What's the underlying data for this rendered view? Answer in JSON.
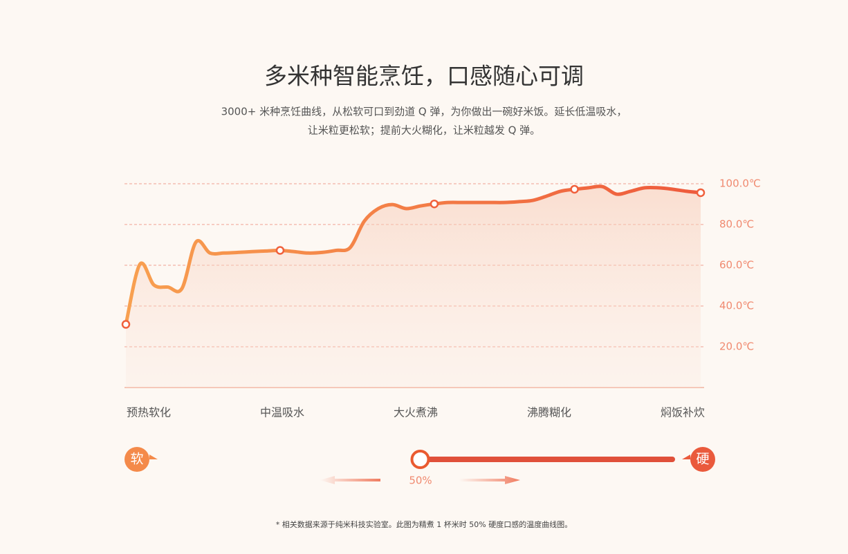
{
  "chart_data": {
    "type": "line",
    "title": "多米种智能烹饪，口感随心可调",
    "subtitle": [
      "3000+ 米种烹饪曲线，从松软可口到劲道 Q 弹，为你做出一碗好米饭。延长低温吸水，",
      "让米粒更松软；提前大火糊化，让米粒越发 Q 弹。"
    ],
    "phases": [
      "预热软化",
      "中温吸水",
      "大火煮沸",
      "沸腾糊化",
      "焖饭补炊"
    ],
    "series": [
      {
        "color": "#f0603c",
        "values": [
          31,
          60.5,
          50.3,
          49.3,
          48.6,
          71.4,
          66,
          66,
          66.3,
          66.7,
          67,
          67.3,
          66.7,
          66,
          66.3,
          67.3,
          68.7,
          81.6,
          87.8,
          89.8,
          87.8,
          89.1,
          90.1,
          90.8,
          90.8,
          90.8,
          90.8,
          90.8,
          91.2,
          91.8,
          93.9,
          96.3,
          97.3,
          98,
          98.6,
          94.9,
          96.3,
          98,
          98,
          97.3,
          96.3,
          95.6
        ]
      }
    ],
    "ylim": [
      0,
      100
    ],
    "yticks": [
      {
        "value": 100,
        "label": "100.0℃"
      },
      {
        "value": 80,
        "label": "80.0℃"
      },
      {
        "value": 60,
        "label": "60.0℃"
      },
      {
        "value": 40,
        "label": "40.0℃"
      },
      {
        "value": 20,
        "label": "20.0℃"
      }
    ],
    "grid": true
  },
  "slider": {
    "left_label": "软",
    "right_label": "硬",
    "value": 50,
    "value_label": "50%"
  },
  "footnote": "* 相关数据来源于纯米科技实验室。此图为精煮 1 杯米时 50% 硬度口感的温度曲线图。"
}
